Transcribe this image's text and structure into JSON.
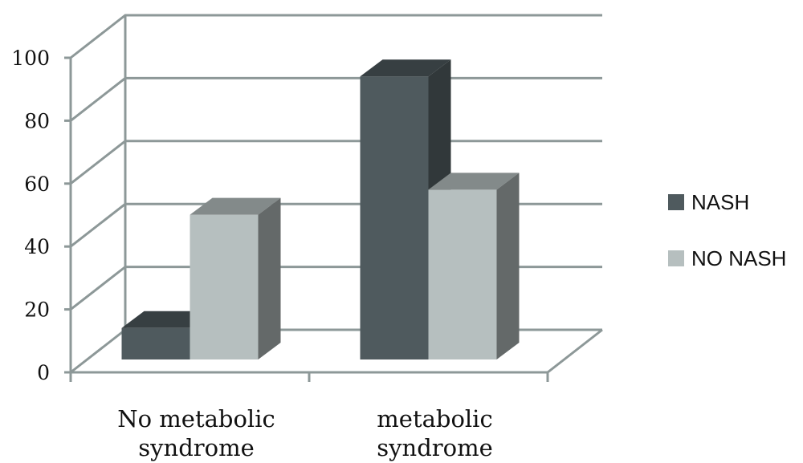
{
  "chart_data": {
    "type": "bar",
    "title": "",
    "xlabel": "",
    "ylabel": "",
    "categories": [
      [
        "No metabolic",
        "syndrome"
      ],
      [
        "metabolic",
        "syndrome"
      ]
    ],
    "series": [
      {
        "name": "NASH",
        "values": [
          10,
          90
        ],
        "color": "#4f5a5e"
      },
      {
        "name": "NO NASH",
        "values": [
          46,
          54
        ],
        "color": "#b6bfbf"
      }
    ],
    "yticks": [
      0,
      20,
      40,
      60,
      80,
      100
    ],
    "ylim": [
      0,
      100
    ],
    "grid": true,
    "legend_position": "right"
  }
}
